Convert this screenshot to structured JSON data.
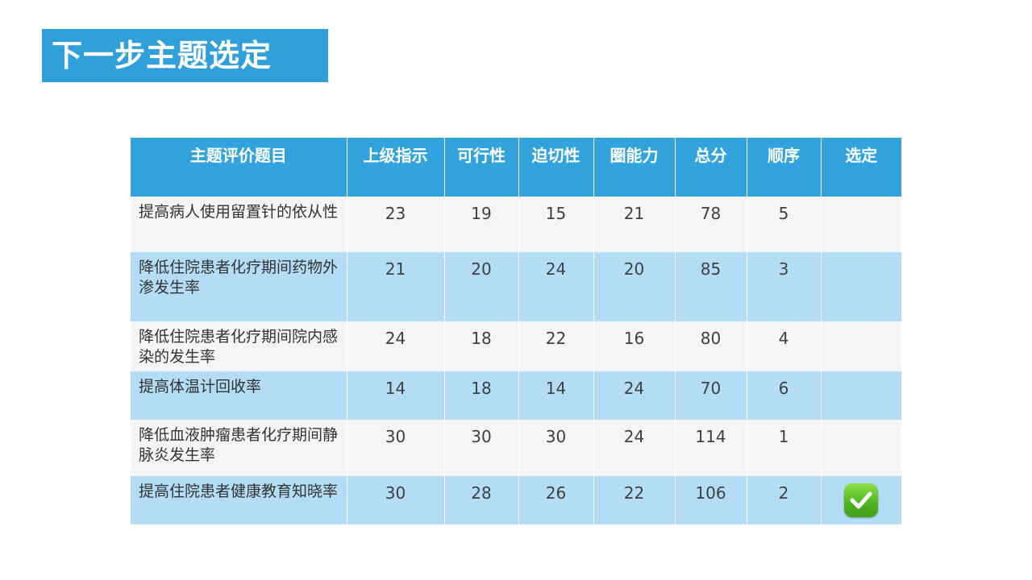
{
  "title": "下一步主题选定",
  "table": {
    "headers": [
      "主题评价题目",
      "上级指示",
      "可行性",
      "迫切性",
      "圈能力",
      "总分",
      "顺序",
      "选定"
    ],
    "rows": [
      {
        "topic": "提高病人使用留置针的依从性",
        "cols": [
          "23",
          "19",
          "15",
          "21",
          "78",
          "5"
        ],
        "selected": false
      },
      {
        "topic": "降低住院患者化疗期间药物外渗发生率",
        "cols": [
          "21",
          "20",
          "24",
          "20",
          "85",
          "3"
        ],
        "selected": false
      },
      {
        "topic": "降低住院患者化疗期间院内感染的发生率",
        "cols": [
          "24",
          "18",
          "22",
          "16",
          "80",
          "4"
        ],
        "selected": false
      },
      {
        "topic": "提高体温计回收率",
        "cols": [
          "14",
          "18",
          "14",
          "24",
          "70",
          "6"
        ],
        "selected": false
      },
      {
        "topic": "降低血液肿瘤患者化疗期间静脉炎发生率",
        "cols": [
          "30",
          "30",
          "30",
          "24",
          "114",
          "1"
        ],
        "selected": false
      },
      {
        "topic": "提高住院患者健康教育知晓率",
        "cols": [
          "30",
          "28",
          "26",
          "22",
          "106",
          "2"
        ],
        "selected": true,
        "selected_icon": "check-icon"
      }
    ]
  },
  "colors": {
    "title_bg": "#2fa0da",
    "header_bg": "#33a3dd",
    "row_light": "#f5f5f5",
    "row_blue": "#b3ddf5",
    "check_green": "#4cb51e"
  }
}
